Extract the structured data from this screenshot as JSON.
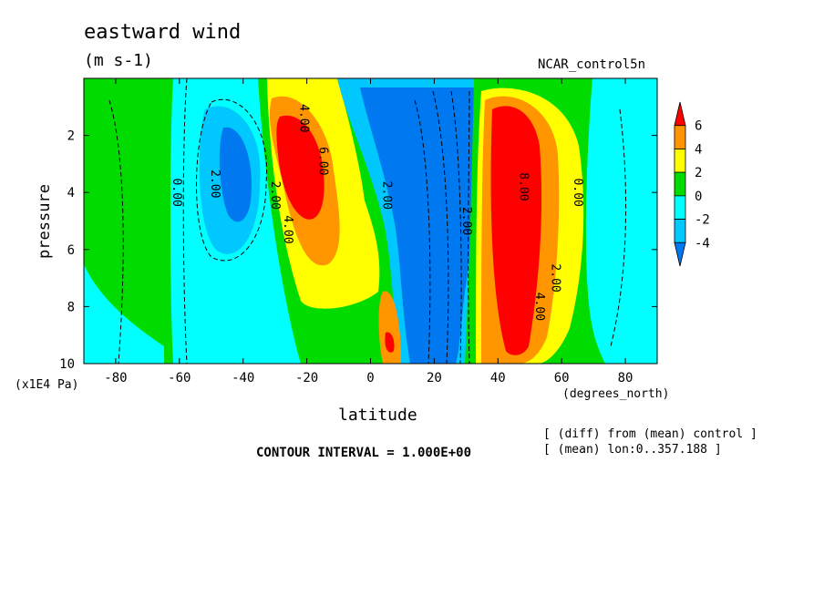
{
  "title": "eastward wind",
  "units": "(m s-1)",
  "dataset": "NCAR_control5n",
  "axes": {
    "y_label": "pressure",
    "y_unit": "(x1E4 Pa)",
    "x_label": "latitude",
    "x_unit": "(degrees_north)"
  },
  "footer": {
    "contour_interval": "CONTOUR INTERVAL = 1.000E+00",
    "note_line1": "[ (diff) from (mean) control ]",
    "note_line2": "[ (mean) lon:0..357.188 ]"
  },
  "colors": {
    "cyan": "#00ffff",
    "light_blue": "#00c8ff",
    "blue": "#0078f0",
    "green": "#00dc00",
    "yellow": "#ffff00",
    "orange": "#ff9600",
    "red": "#ff0000"
  },
  "chart_data": {
    "type": "heatmap",
    "title": "eastward wind",
    "xlabel": "latitude",
    "ylabel": "pressure",
    "xlim": [
      -90,
      90
    ],
    "ylim": [
      10,
      0
    ],
    "y_inverted": true,
    "x_ticks": [
      -80,
      -60,
      -40,
      -20,
      0,
      20,
      40,
      60,
      80
    ],
    "x_tick_labels": [
      "-80",
      "-60",
      "-40",
      "-20",
      "0",
      "20",
      "40",
      "60",
      "80"
    ],
    "y_ticks": [
      2,
      4,
      6,
      8,
      10
    ],
    "y_tick_labels": [
      "2",
      "4",
      "6",
      "8",
      "10"
    ],
    "contour_interval": 1.0,
    "colorbar": {
      "levels": [
        -4,
        -2,
        0,
        2,
        4,
        6
      ],
      "labels": [
        "6",
        "4",
        "2",
        "0",
        "-2",
        "-4"
      ],
      "bins": [
        {
          "range": "> 6",
          "color": "#ff0000"
        },
        {
          "range": "4 to 6",
          "color": "#ff9600"
        },
        {
          "range": "2 to 4",
          "color": "#ffff00"
        },
        {
          "range": "0 to 2",
          "color": "#00dc00"
        },
        {
          "range": "-2 to 0",
          "color": "#00ffff"
        },
        {
          "range": "-4 to -2",
          "color": "#00c8ff"
        },
        {
          "range": "< -4",
          "color": "#0078f0"
        }
      ]
    },
    "contour_labels": [
      {
        "text": "0.00",
        "lat": -62,
        "p": 4.0
      },
      {
        "text": "2.00",
        "lat": -50,
        "p": 3.7
      },
      {
        "text": "2.00",
        "lat": -31,
        "p": 4.1
      },
      {
        "text": "4.00",
        "lat": -22,
        "p": 1.4
      },
      {
        "text": "6.00",
        "lat": -16,
        "p": 2.9
      },
      {
        "text": "4.00",
        "lat": -27,
        "p": 5.3
      },
      {
        "text": "2.00",
        "lat": 4,
        "p": 4.1
      },
      {
        "text": "2.00",
        "lat": 29,
        "p": 5.0
      },
      {
        "text": "8.00",
        "lat": 47,
        "p": 3.8
      },
      {
        "text": "0.00",
        "lat": 64,
        "p": 4.0
      },
      {
        "text": "2.00",
        "lat": 57,
        "p": 7.0
      },
      {
        "text": "4.00",
        "lat": 52,
        "p": 8.0
      }
    ],
    "regions": [
      {
        "level": 0,
        "lat_range": [
          -90,
          -65
        ],
        "p_range": [
          0.5,
          10
        ]
      },
      {
        "level": -2,
        "lat_range": [
          -65,
          -50
        ],
        "p_range": [
          0.5,
          10
        ]
      },
      {
        "level": -4,
        "lat_range": [
          -50,
          -35
        ],
        "p_range": [
          1,
          6
        ]
      },
      {
        "level": 4,
        "lat_range": [
          -35,
          -10
        ],
        "p_range": [
          1,
          6.5
        ]
      },
      {
        "level": 6,
        "lat_range": [
          -30,
          -15
        ],
        "p_range": [
          1.5,
          4.5
        ]
      },
      {
        "level": -4,
        "lat_range": [
          0,
          40
        ],
        "p_range": [
          0.5,
          10
        ]
      },
      {
        "level": 6,
        "lat_range": [
          38,
          50
        ],
        "p_range": [
          1.5,
          9.5
        ]
      },
      {
        "level": 0,
        "lat_range": [
          60,
          90
        ],
        "p_range": [
          0.5,
          10
        ]
      }
    ]
  }
}
